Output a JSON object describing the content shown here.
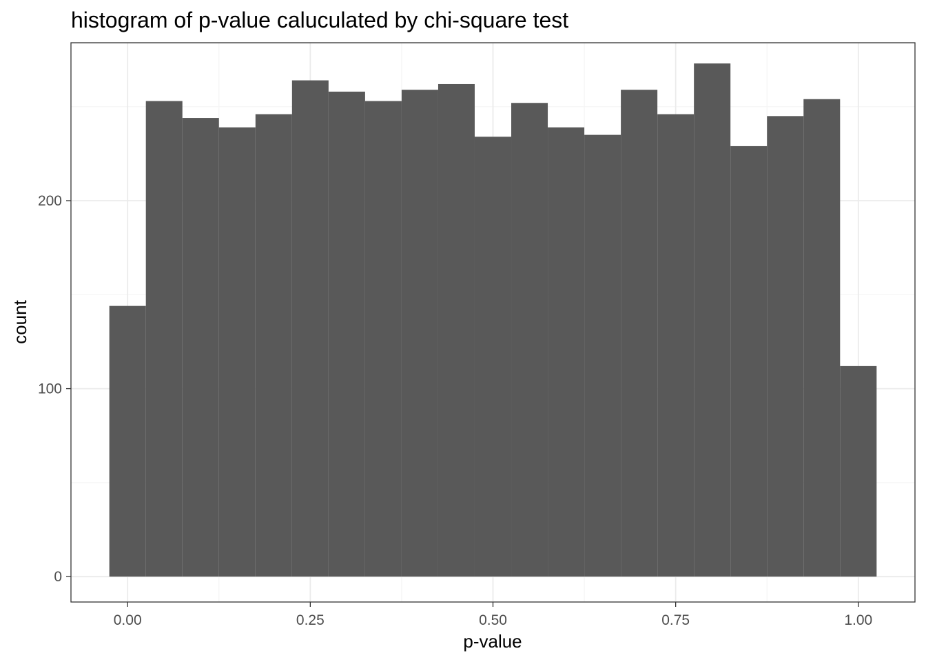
{
  "chart_data": {
    "type": "histogram",
    "title": "histogram of p-value caluculated by chi-square test",
    "xlabel": "p-value",
    "ylabel": "count",
    "xlim": [
      -0.0775,
      1.0775
    ],
    "ylim": [
      -13.5,
      284
    ],
    "x_ticks": [
      0.0,
      0.25,
      0.5,
      0.75,
      1.0
    ],
    "x_tick_labels": [
      "0.00",
      "0.25",
      "0.50",
      "0.75",
      "1.00"
    ],
    "y_ticks": [
      0,
      100,
      200
    ],
    "y_tick_labels": [
      "0",
      "100",
      "200"
    ],
    "grid": true,
    "bin_width": 0.05,
    "bins": [
      {
        "x0": -0.025,
        "x1": 0.025,
        "count": 144
      },
      {
        "x0": 0.025,
        "x1": 0.075,
        "count": 253
      },
      {
        "x0": 0.075,
        "x1": 0.125,
        "count": 244
      },
      {
        "x0": 0.125,
        "x1": 0.175,
        "count": 239
      },
      {
        "x0": 0.175,
        "x1": 0.225,
        "count": 246
      },
      {
        "x0": 0.225,
        "x1": 0.275,
        "count": 264
      },
      {
        "x0": 0.275,
        "x1": 0.325,
        "count": 258
      },
      {
        "x0": 0.325,
        "x1": 0.375,
        "count": 253
      },
      {
        "x0": 0.375,
        "x1": 0.425,
        "count": 259
      },
      {
        "x0": 0.425,
        "x1": 0.475,
        "count": 262
      },
      {
        "x0": 0.475,
        "x1": 0.525,
        "count": 234
      },
      {
        "x0": 0.525,
        "x1": 0.575,
        "count": 252
      },
      {
        "x0": 0.575,
        "x1": 0.625,
        "count": 239
      },
      {
        "x0": 0.625,
        "x1": 0.675,
        "count": 235
      },
      {
        "x0": 0.675,
        "x1": 0.725,
        "count": 259
      },
      {
        "x0": 0.725,
        "x1": 0.775,
        "count": 246
      },
      {
        "x0": 0.775,
        "x1": 0.825,
        "count": 273
      },
      {
        "x0": 0.825,
        "x1": 0.875,
        "count": 229
      },
      {
        "x0": 0.875,
        "x1": 0.925,
        "count": 245
      },
      {
        "x0": 0.925,
        "x1": 0.975,
        "count": 254
      },
      {
        "x0": 0.975,
        "x1": 1.025,
        "count": 112
      }
    ],
    "colors": {
      "bar": "#595959",
      "panel_border": "#333333",
      "grid_major": "#ebebeb",
      "grid_minor": "#f5f5f5",
      "tick_label": "#4d4d4d"
    }
  }
}
